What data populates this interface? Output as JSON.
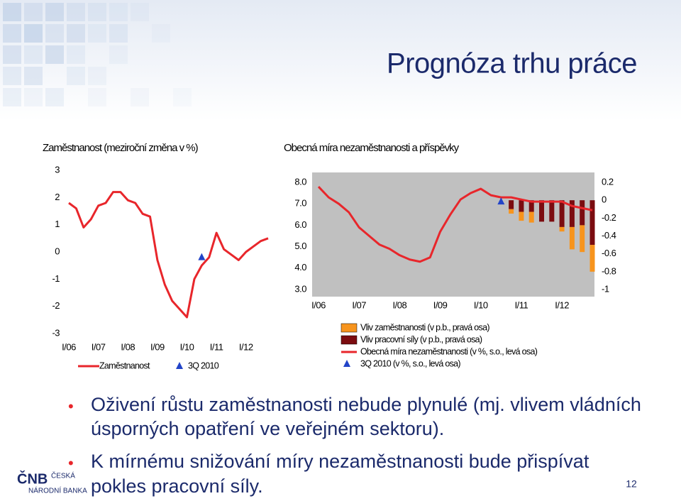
{
  "title": "Prognóza trhu práce",
  "chart_data": [
    {
      "type": "line",
      "title": "Zaměstnanost (meziroční změna v %)",
      "categories": [
        "I/06",
        null,
        null,
        null,
        "I/07",
        null,
        null,
        null,
        "I/08",
        null,
        null,
        null,
        "I/09",
        null,
        null,
        null,
        "I/10",
        null,
        null,
        null,
        "I/11",
        null,
        null,
        null,
        "I/12",
        null,
        null,
        null
      ],
      "series": [
        {
          "name": "Zaměstnanost",
          "color": "#e8262b",
          "values": [
            1.8,
            1.6,
            0.9,
            1.2,
            1.7,
            1.8,
            2.2,
            2.2,
            1.9,
            1.8,
            1.4,
            1.3,
            -0.3,
            -1.2,
            -1.8,
            -2.1,
            -2.4,
            -1.0,
            -0.5,
            -0.2,
            0.7,
            0.1,
            -0.1,
            -0.3,
            0.0,
            0.2,
            0.4,
            0.5
          ]
        },
        {
          "name": "3Q 2010",
          "color": "#2244c8",
          "marker": "triangle",
          "values": [
            null,
            null,
            null,
            null,
            null,
            null,
            null,
            null,
            null,
            null,
            null,
            null,
            null,
            null,
            null,
            null,
            null,
            null,
            -0.2,
            null,
            null,
            null,
            null,
            null,
            null,
            null,
            null,
            null
          ]
        }
      ],
      "ylim": [
        -3,
        3
      ],
      "yticks": [
        -3,
        -2,
        -1,
        0,
        1,
        2,
        3
      ]
    },
    {
      "type": "bar",
      "title": "Obecná míra nezaměstnanosti a příspěvky",
      "stacked": true,
      "background": "#c0c0c0",
      "categories": [
        "I/06",
        null,
        null,
        null,
        "I/07",
        null,
        null,
        null,
        "I/08",
        null,
        null,
        null,
        "I/09",
        null,
        null,
        null,
        "I/10",
        null,
        null,
        null,
        "I/11",
        null,
        null,
        null,
        "I/12",
        null,
        null,
        null
      ],
      "series": [
        {
          "name": "Vliv zaměstnanosti  (v p.b., pravá osa)",
          "type": "bar",
          "axis": "y2",
          "color": "#f7941d",
          "values": [
            null,
            null,
            null,
            null,
            null,
            null,
            null,
            null,
            null,
            null,
            null,
            null,
            null,
            null,
            null,
            null,
            null,
            null,
            null,
            -0.05,
            -0.1,
            -0.12,
            0,
            0,
            -0.05,
            -0.25,
            -0.3,
            -0.3
          ]
        },
        {
          "name": "Vliv pracovní síly (v p.b., pravá osa)",
          "type": "bar",
          "axis": "y2",
          "color": "#7b0c10",
          "values": [
            null,
            null,
            null,
            null,
            null,
            null,
            null,
            null,
            null,
            null,
            null,
            null,
            null,
            null,
            null,
            null,
            null,
            null,
            null,
            -0.1,
            -0.13,
            -0.13,
            -0.24,
            -0.24,
            -0.3,
            -0.3,
            -0.28,
            -0.5
          ]
        },
        {
          "name": "Obecná míra nezaměstnanosti (v %, s.o., levá osa)",
          "type": "line",
          "color": "#e8262b",
          "values": [
            7.8,
            7.3,
            7.0,
            6.6,
            5.9,
            5.5,
            5.1,
            4.9,
            4.6,
            4.4,
            4.3,
            4.5,
            5.7,
            6.5,
            7.2,
            7.5,
            7.7,
            7.4,
            7.3,
            7.3,
            7.2,
            7.1,
            7.1,
            7.1,
            7.1,
            6.9,
            6.8,
            6.7
          ]
        },
        {
          "name": "3Q 2010 (v %, s.o., levá osa)",
          "type": "scatter",
          "marker": "triangle",
          "color": "#2244c8",
          "values": [
            null,
            null,
            null,
            null,
            null,
            null,
            null,
            null,
            null,
            null,
            null,
            null,
            null,
            null,
            null,
            null,
            null,
            null,
            7.1,
            null,
            null,
            null,
            null,
            null,
            null,
            null,
            null,
            null
          ]
        }
      ],
      "ylim": [
        3,
        8
      ],
      "yticks": [
        {
          "value": 3,
          "label": "3.0"
        },
        {
          "value": 4,
          "label": "4.0"
        },
        {
          "value": 5,
          "label": "5.0"
        },
        {
          "value": 6,
          "label": "6.0"
        },
        {
          "value": 7,
          "label": "7.0"
        },
        {
          "value": 8,
          "label": "8.0"
        }
      ],
      "y2lim": [
        -1,
        0.2
      ],
      "y2ticks": [
        -1,
        -0.8,
        -0.6,
        -0.4,
        -0.2,
        0,
        0.2
      ]
    }
  ],
  "bullets": [
    "Oživení růstu zaměstnanosti nebude plynulé (mj. vlivem vládních",
    "úsporných opatření ve veřejném sektoru).",
    "K mírnému snižování míry nezaměstnanosti bude přispívat",
    "pokles pracovní síly."
  ],
  "logo": {
    "mark": "ČNB",
    "line1": "ČESKÁ",
    "line2": "NÁRODNÍ BANKA"
  },
  "page_number": "12"
}
